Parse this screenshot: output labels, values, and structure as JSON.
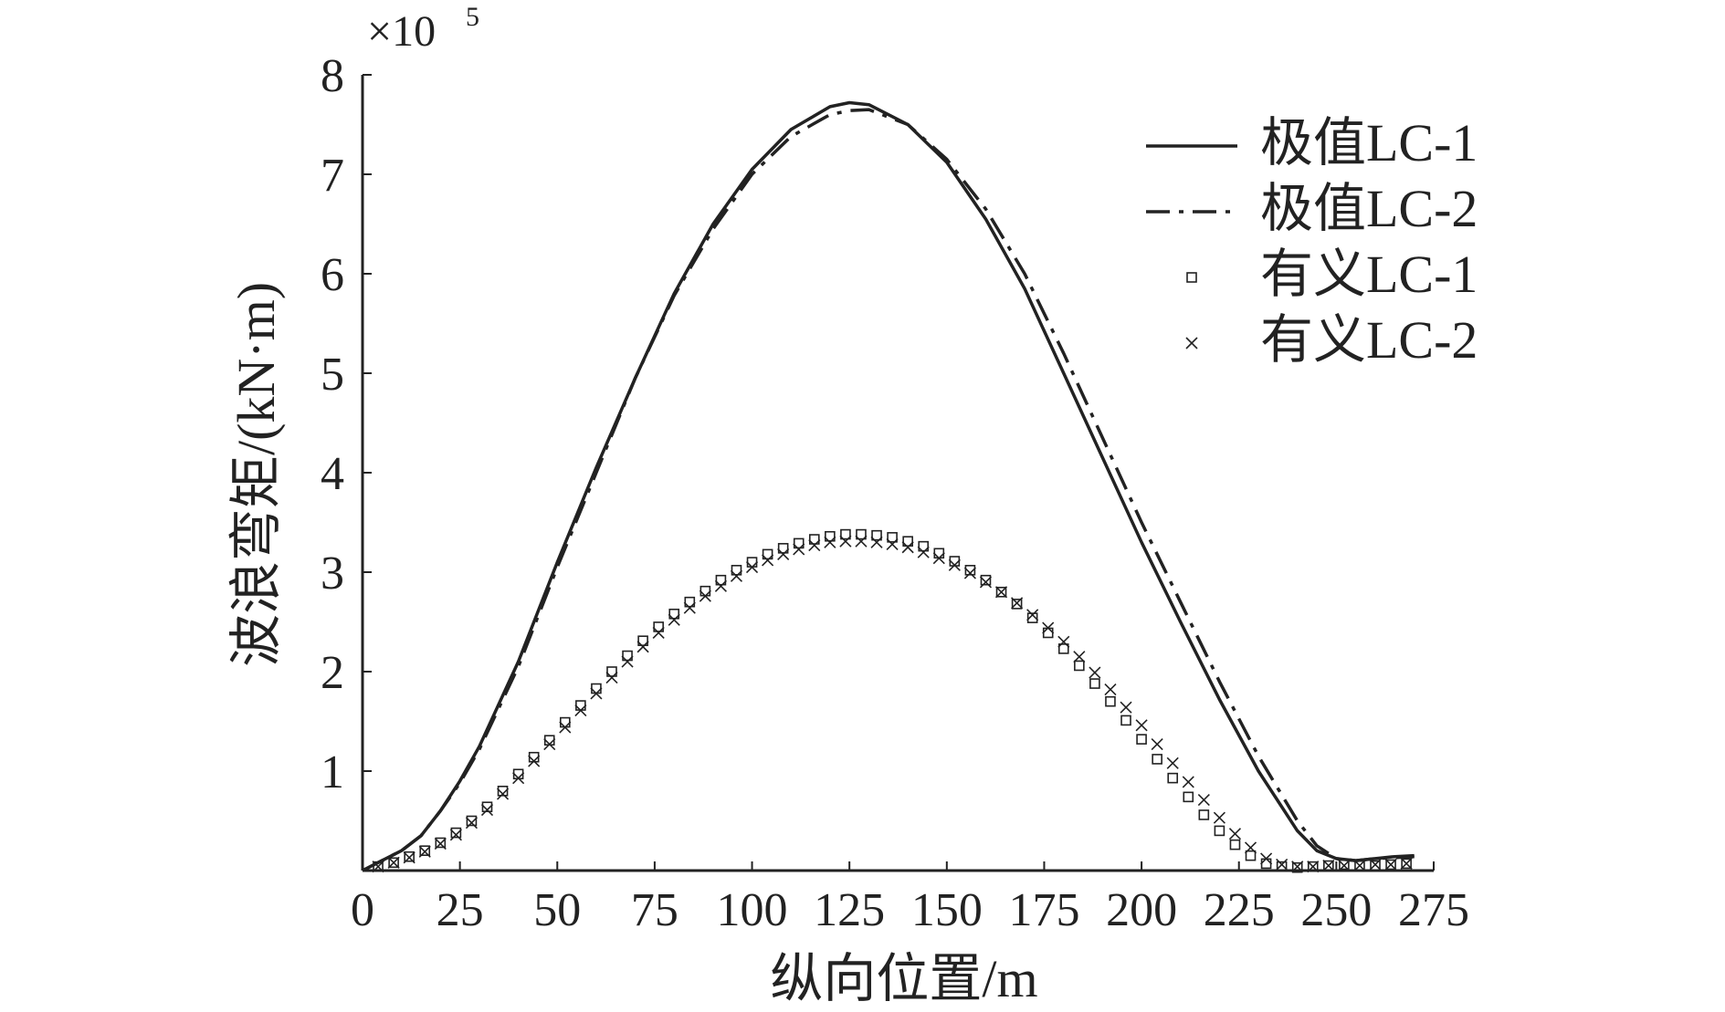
{
  "chart_data": {
    "type": "line",
    "multiplier_base": "×10",
    "multiplier_exp": "5",
    "xlabel": "纵向位置/m",
    "ylabel": "波浪弯矩/(kN·m)",
    "xlim": [
      0,
      275
    ],
    "ylim": [
      0,
      8
    ],
    "xticks": [
      "0",
      "25",
      "50",
      "75",
      "100",
      "125",
      "150",
      "175",
      "200",
      "225",
      "250",
      "275"
    ],
    "yticks": [
      "1",
      "2",
      "3",
      "4",
      "5",
      "6",
      "7",
      "8"
    ],
    "legend_position": "top-right",
    "colors": {
      "series": "#222222"
    },
    "series": [
      {
        "name": "极值LC-1",
        "style": "solid",
        "x": [
          0,
          5,
          10,
          15,
          20,
          25,
          30,
          40,
          50,
          60,
          70,
          80,
          90,
          100,
          110,
          120,
          125,
          130,
          140,
          150,
          160,
          170,
          180,
          190,
          200,
          210,
          220,
          230,
          240,
          245,
          250,
          255,
          260,
          265,
          270
        ],
        "y": [
          0.0,
          0.1,
          0.2,
          0.35,
          0.6,
          0.9,
          1.25,
          2.1,
          3.1,
          4.05,
          4.95,
          5.8,
          6.5,
          7.05,
          7.45,
          7.68,
          7.72,
          7.7,
          7.5,
          7.12,
          6.55,
          5.85,
          5.0,
          4.15,
          3.3,
          2.5,
          1.72,
          1.0,
          0.4,
          0.2,
          0.12,
          0.1,
          0.12,
          0.14,
          0.15
        ]
      },
      {
        "name": "极值LC-2",
        "style": "dashdot",
        "x": [
          0,
          5,
          10,
          15,
          20,
          25,
          30,
          40,
          50,
          60,
          70,
          80,
          90,
          100,
          110,
          120,
          125,
          130,
          140,
          150,
          160,
          170,
          180,
          190,
          200,
          210,
          220,
          230,
          240,
          245,
          250,
          255,
          260,
          265,
          270
        ],
        "y": [
          0.0,
          0.1,
          0.2,
          0.35,
          0.6,
          0.88,
          1.22,
          2.05,
          3.05,
          4.0,
          4.95,
          5.78,
          6.45,
          7.0,
          7.38,
          7.6,
          7.64,
          7.65,
          7.5,
          7.15,
          6.65,
          6.0,
          5.2,
          4.35,
          3.5,
          2.7,
          1.9,
          1.15,
          0.5,
          0.25,
          0.12,
          0.1,
          0.12,
          0.13,
          0.14
        ]
      },
      {
        "name": "有义LC-1",
        "style": "square",
        "x": [
          4,
          8,
          12,
          16,
          20,
          24,
          28,
          32,
          36,
          40,
          44,
          48,
          52,
          56,
          60,
          64,
          68,
          72,
          76,
          80,
          84,
          88,
          92,
          96,
          100,
          104,
          108,
          112,
          116,
          120,
          124,
          128,
          132,
          136,
          140,
          144,
          148,
          152,
          156,
          160,
          164,
          168,
          172,
          176,
          180,
          184,
          188,
          192,
          196,
          200,
          204,
          208,
          212,
          216,
          220,
          224,
          228,
          232,
          236,
          240,
          244,
          248,
          252,
          256,
          260,
          264,
          268
        ],
        "y": [
          0.04,
          0.08,
          0.14,
          0.2,
          0.28,
          0.38,
          0.5,
          0.64,
          0.8,
          0.97,
          1.14,
          1.31,
          1.49,
          1.66,
          1.83,
          2.0,
          2.16,
          2.31,
          2.45,
          2.58,
          2.7,
          2.81,
          2.92,
          3.02,
          3.1,
          3.18,
          3.24,
          3.29,
          3.33,
          3.36,
          3.38,
          3.38,
          3.37,
          3.35,
          3.31,
          3.26,
          3.19,
          3.11,
          3.02,
          2.92,
          2.8,
          2.68,
          2.54,
          2.39,
          2.23,
          2.06,
          1.88,
          1.7,
          1.51,
          1.32,
          1.12,
          0.93,
          0.74,
          0.56,
          0.4,
          0.26,
          0.15,
          0.07,
          0.04,
          0.03,
          0.04,
          0.05,
          0.06,
          0.05,
          0.05,
          0.06,
          0.07
        ]
      },
      {
        "name": "有义LC-2",
        "style": "cross",
        "x": [
          4,
          8,
          12,
          16,
          20,
          24,
          28,
          32,
          36,
          40,
          44,
          48,
          52,
          56,
          60,
          64,
          68,
          72,
          76,
          80,
          84,
          88,
          92,
          96,
          100,
          104,
          108,
          112,
          116,
          120,
          124,
          128,
          132,
          136,
          140,
          144,
          148,
          152,
          156,
          160,
          164,
          168,
          172,
          176,
          180,
          184,
          188,
          192,
          196,
          200,
          204,
          208,
          212,
          216,
          220,
          224,
          228,
          232,
          236,
          240,
          244,
          248,
          252,
          256,
          260,
          264,
          268
        ],
        "y": [
          0.04,
          0.08,
          0.13,
          0.19,
          0.27,
          0.36,
          0.48,
          0.61,
          0.77,
          0.93,
          1.1,
          1.27,
          1.44,
          1.61,
          1.78,
          1.94,
          2.1,
          2.25,
          2.39,
          2.52,
          2.64,
          2.76,
          2.86,
          2.96,
          3.05,
          3.12,
          3.18,
          3.23,
          3.27,
          3.3,
          3.31,
          3.31,
          3.3,
          3.28,
          3.25,
          3.2,
          3.14,
          3.07,
          2.99,
          2.9,
          2.8,
          2.69,
          2.57,
          2.44,
          2.3,
          2.15,
          1.99,
          1.82,
          1.64,
          1.46,
          1.27,
          1.08,
          0.89,
          0.71,
          0.53,
          0.37,
          0.23,
          0.12,
          0.06,
          0.04,
          0.04,
          0.05,
          0.05,
          0.05,
          0.06,
          0.06,
          0.07
        ]
      }
    ]
  }
}
